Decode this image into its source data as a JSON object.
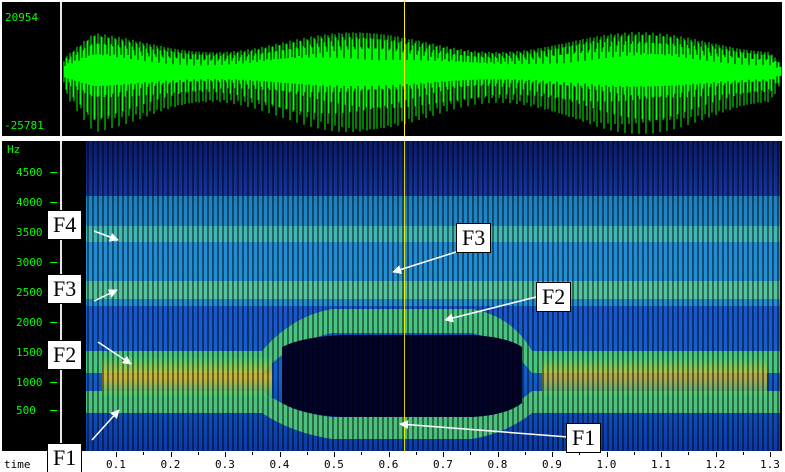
{
  "waveform": {
    "max_label": "20954",
    "min_label": "-25781",
    "color": "#00ff00"
  },
  "spectrogram": {
    "unit_label": "Hz",
    "y_ticks": [
      "4500",
      "4000",
      "3500",
      "3000",
      "2500",
      "2000",
      "1500",
      "1000",
      "500"
    ]
  },
  "time_axis": {
    "label": "time",
    "ticks": [
      "0.1",
      "0.2",
      "0.3",
      "0.4",
      "0.5",
      "0.6",
      "0.7",
      "0.8",
      "0.9",
      "1.0",
      "1.1",
      "1.2",
      "1.3"
    ]
  },
  "cursor": {
    "color": "#ffee00"
  },
  "annotations": {
    "F4_left": "F4",
    "F3_left": "F3",
    "F2_left": "F2",
    "F1_left": "F1",
    "F3_right": "F3",
    "F2_right": "F2",
    "F1_right": "F1"
  }
}
